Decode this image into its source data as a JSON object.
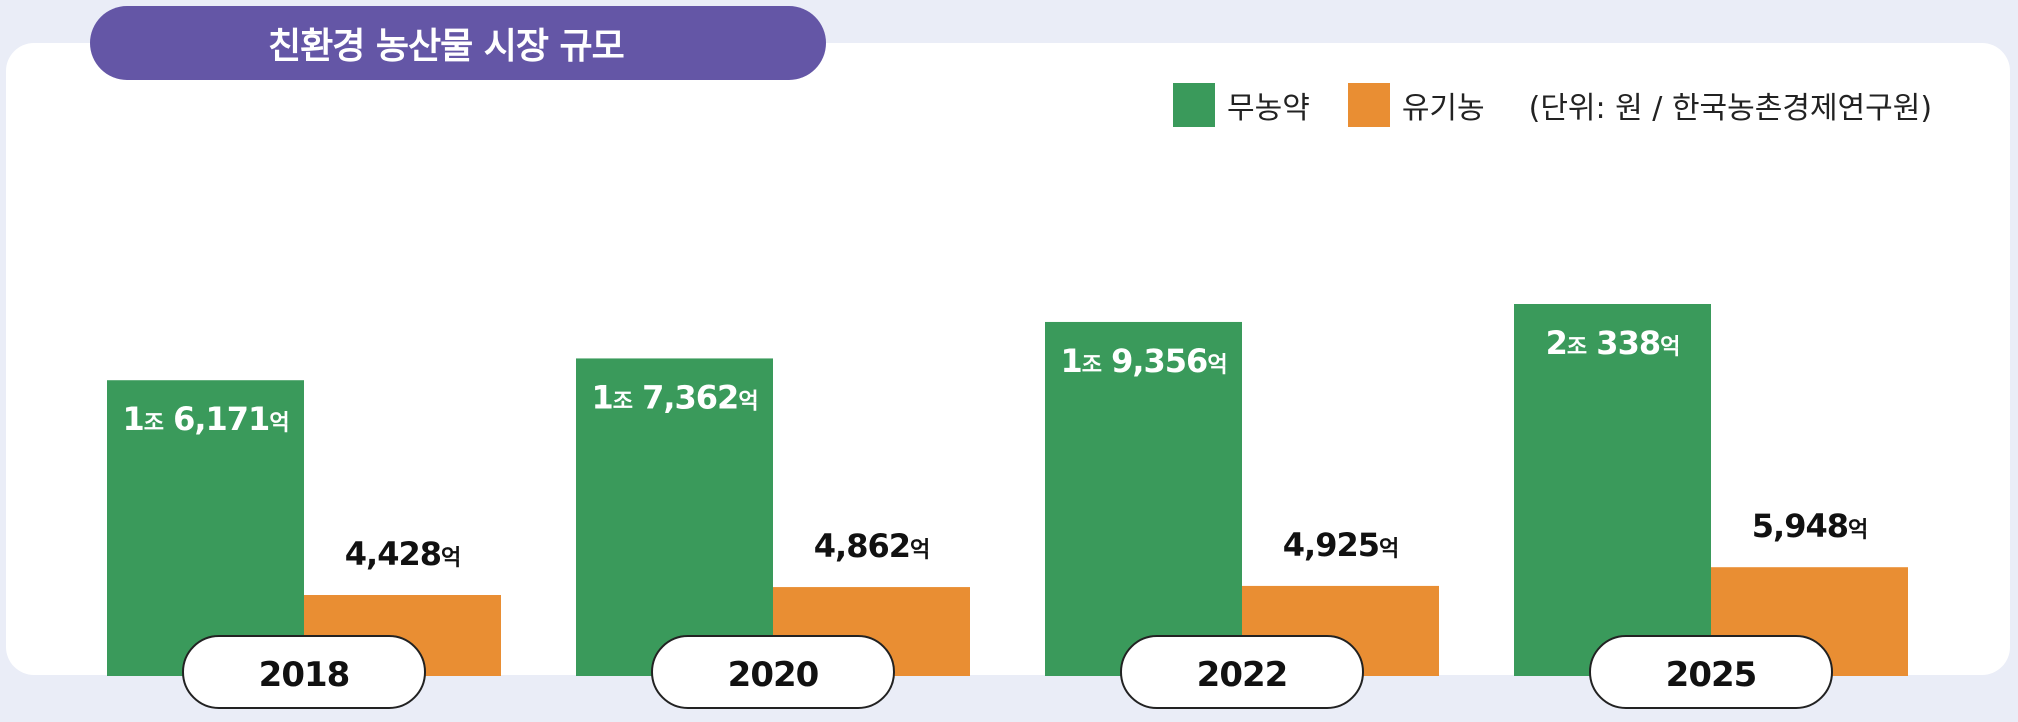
{
  "title": "친환경 농산물 시장 규모",
  "legend": {
    "series1": "무농약",
    "series2": "유기농",
    "note": "(단위: 원 / 한국농촌경제연구원)"
  },
  "colors": {
    "green": "#3a9a5b",
    "orange": "#e98e33",
    "title_bg": "#6456a6",
    "background": "#eaedf7"
  },
  "chart_data": {
    "type": "bar",
    "title": "친환경 농산물 시장 규모",
    "unit": "억 원",
    "categories": [
      "2018",
      "2020",
      "2022",
      "2025"
    ],
    "series": [
      {
        "name": "무농약",
        "values": [
          16171,
          17362,
          19356,
          20338
        ],
        "labels": [
          "1조 6,171억",
          "1조 7,362억",
          "1조 9,356억",
          "2조 338억"
        ]
      },
      {
        "name": "유기농",
        "values": [
          4428,
          4862,
          4925,
          5948
        ],
        "labels": [
          "4,428억",
          "4,862억",
          "4,925억",
          "5,948억"
        ]
      }
    ],
    "legend_position": "top-right",
    "grid": false
  }
}
